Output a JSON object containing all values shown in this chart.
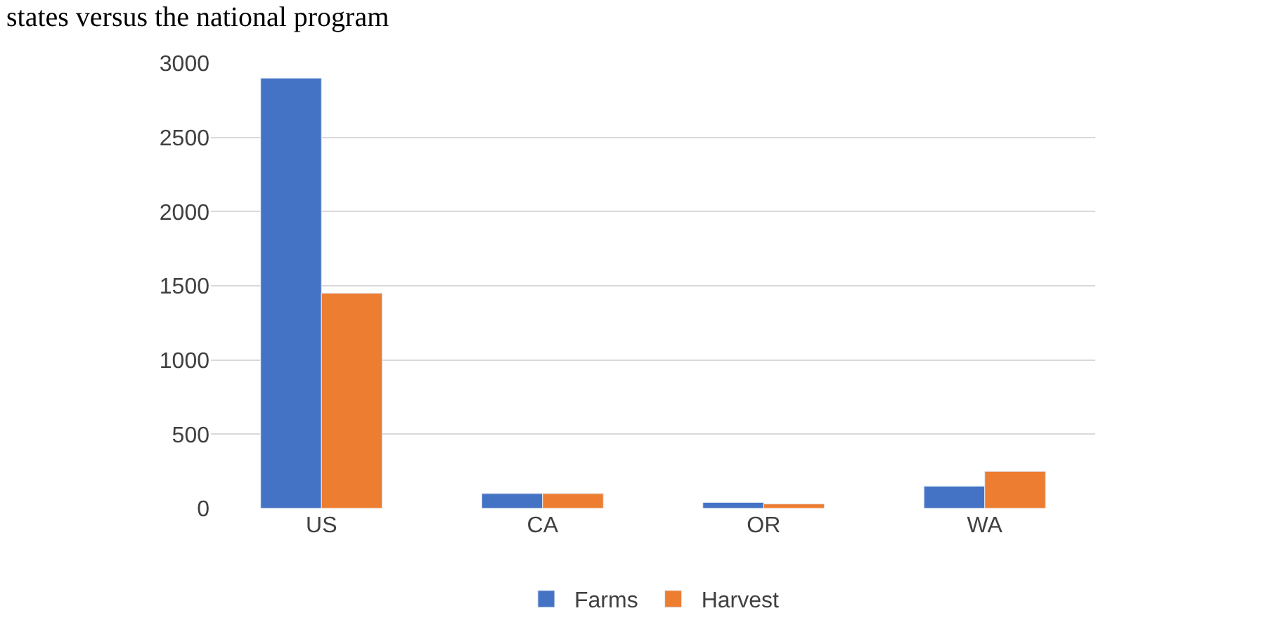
{
  "chart_data": {
    "type": "bar",
    "title": "states versus the national program",
    "categories": [
      "US",
      "CA",
      "OR",
      "WA"
    ],
    "series": [
      {
        "name": "Farms",
        "color": "#4472c4",
        "values": [
          2900,
          100,
          40,
          150
        ]
      },
      {
        "name": "Harvest",
        "color": "#ed7d31",
        "values": [
          1450,
          100,
          30,
          250
        ]
      }
    ],
    "ylim": [
      0,
      3000
    ],
    "yticks": [
      0,
      500,
      1000,
      1500,
      2000,
      2500,
      3000
    ],
    "grid": "y",
    "legend": "bottom"
  }
}
